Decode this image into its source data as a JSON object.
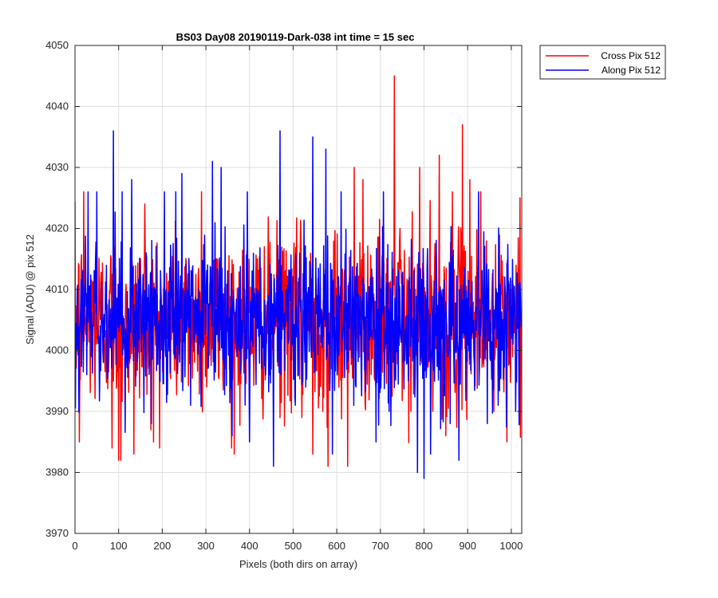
{
  "chart_data": {
    "type": "line",
    "title": "BS03 Day08 20190119-Dark-038 int time = 15 sec",
    "xlabel": "Pixels (both dirs on array)",
    "ylabel": "Signal (ADU) @ pix 512",
    "xlim": [
      0,
      1024
    ],
    "ylim": [
      3970,
      4050
    ],
    "xticks": [
      0,
      100,
      200,
      300,
      400,
      500,
      600,
      700,
      800,
      900,
      1000
    ],
    "yticks": [
      3970,
      3980,
      3990,
      4000,
      4010,
      4020,
      4030,
      4040,
      4050
    ],
    "grid": true,
    "legend_position": "outside-top-right",
    "n_points": 1024,
    "series": [
      {
        "name": "Cross Pix 512",
        "color": "#ff0000",
        "mean": 4005,
        "std": 7,
        "peaks": [
          [
            10,
            3985
          ],
          [
            20,
            4026
          ],
          [
            85,
            3984
          ],
          [
            100,
            3982
          ],
          [
            105,
            3982
          ],
          [
            135,
            3983
          ],
          [
            160,
            4024
          ],
          [
            180,
            3985
          ],
          [
            290,
            4026
          ],
          [
            365,
            3983
          ],
          [
            470,
            3989
          ],
          [
            520,
            3989
          ],
          [
            545,
            3983
          ],
          [
            580,
            3981
          ],
          [
            625,
            3981
          ],
          [
            640,
            4030
          ],
          [
            660,
            4028
          ],
          [
            732,
            4045
          ],
          [
            745,
            4020
          ],
          [
            770,
            3990
          ],
          [
            790,
            4030
          ],
          [
            820,
            3990
          ],
          [
            835,
            4032
          ],
          [
            850,
            3986
          ],
          [
            865,
            4026
          ],
          [
            888,
            4037
          ],
          [
            905,
            4028
          ],
          [
            930,
            4026
          ],
          [
            960,
            3990
          ],
          [
            990,
            3985
          ],
          [
            1000,
            4010
          ],
          [
            1020,
            4025
          ]
        ]
      },
      {
        "name": "Along Pix 512",
        "color": "#0000ff",
        "mean": 4005,
        "std": 6.5,
        "peaks": [
          [
            30,
            4026
          ],
          [
            50,
            4026
          ],
          [
            88,
            4036
          ],
          [
            108,
            4026
          ],
          [
            130,
            4028
          ],
          [
            175,
            3988
          ],
          [
            205,
            4026
          ],
          [
            245,
            4029
          ],
          [
            265,
            3991
          ],
          [
            315,
            4031
          ],
          [
            335,
            4030
          ],
          [
            360,
            3986
          ],
          [
            395,
            4026
          ],
          [
            400,
            3985
          ],
          [
            455,
            3981
          ],
          [
            470,
            4036
          ],
          [
            505,
            3991
          ],
          [
            545,
            4035
          ],
          [
            575,
            4033
          ],
          [
            590,
            3983
          ],
          [
            690,
            3985
          ],
          [
            720,
            3990
          ],
          [
            785,
            3980
          ],
          [
            800,
            3979
          ],
          [
            815,
            3983
          ],
          [
            860,
            3988
          ],
          [
            880,
            3982
          ],
          [
            925,
            4026
          ],
          [
            945,
            3988
          ],
          [
            970,
            3991
          ],
          [
            1010,
            3990
          ]
        ]
      }
    ]
  }
}
